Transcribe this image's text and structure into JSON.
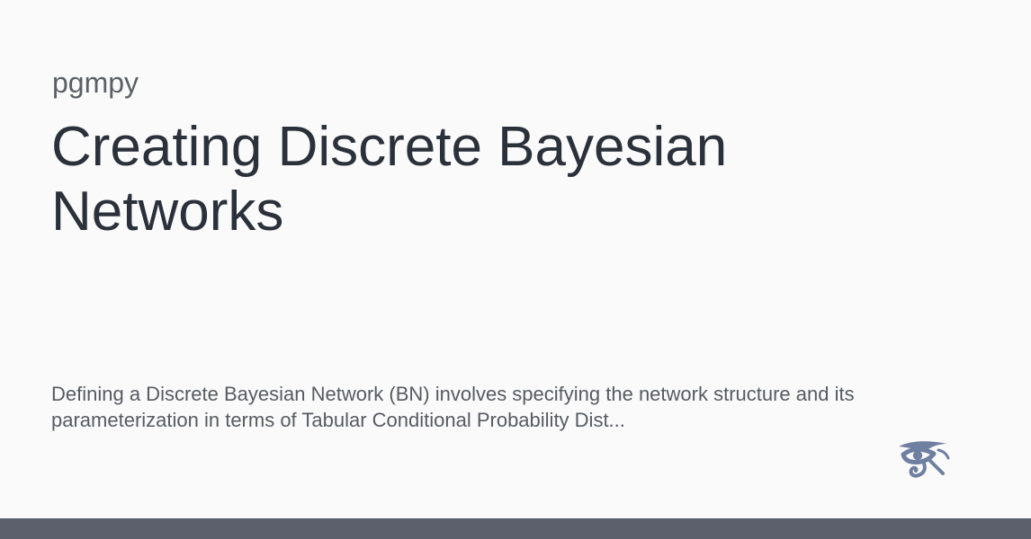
{
  "site": {
    "name": "pgmpy"
  },
  "page": {
    "title": "Creating Discrete Bayesian Networks",
    "description": "Defining a Discrete Bayesian Network (BN) involves specifying the network structure and its parameterization in terms of Tabular Conditional Probability Dist..."
  },
  "logo": {
    "icon": "eye-of-horus-icon",
    "color": "#6f7fa1"
  },
  "theme": {
    "background": "#fafafa",
    "bottom_bar": "#5b606c",
    "title_color": "#2b313a",
    "text_color": "#575b61"
  }
}
